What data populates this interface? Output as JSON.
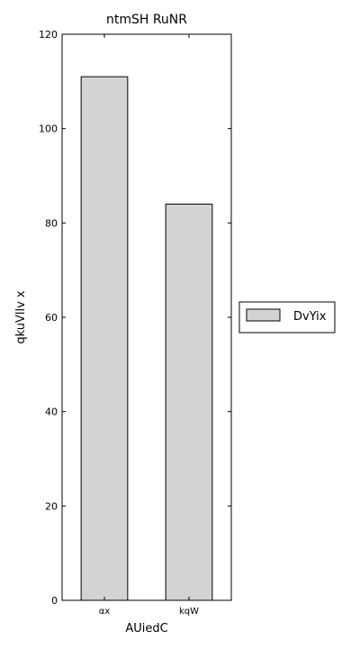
{
  "chart_data": {
    "type": "bar",
    "title": "ntmSH RuNR",
    "xlabel": "AUiedC",
    "ylabel": "qkuVllv x",
    "categories": [
      "αx",
      "kqW"
    ],
    "series": [
      {
        "name": "DvYix",
        "values": [
          111,
          84
        ]
      }
    ],
    "ylim": [
      0,
      120
    ],
    "yticks": [
      0,
      20,
      40,
      60,
      80,
      100,
      120
    ],
    "grid": false,
    "legend_position": "right",
    "colors": {
      "bar_fill": "#d3d3d3",
      "bar_edge": "#000000",
      "axis": "#000000"
    }
  }
}
